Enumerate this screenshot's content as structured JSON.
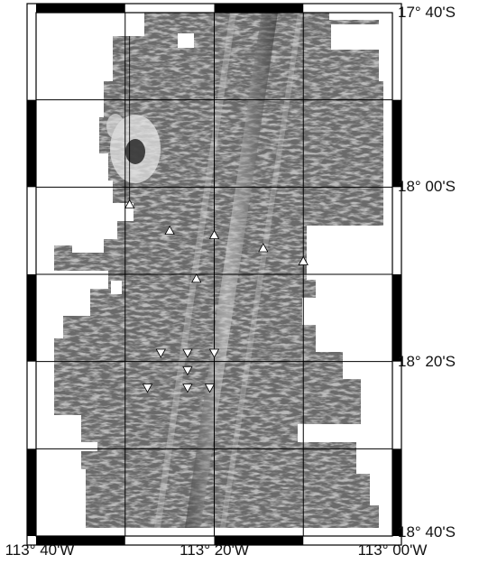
{
  "map": {
    "lat_labels": [
      {
        "text": "17° 40'S",
        "lat": -17.6667
      },
      {
        "text": "18° 00'S",
        "lat": -18.0
      },
      {
        "text": "18° 20'S",
        "lat": -18.3333
      },
      {
        "text": "18° 40'S",
        "lat": -18.6667
      }
    ],
    "lon_labels": [
      {
        "text": "113° 40'W",
        "lon": -113.6667
      },
      {
        "text": "113° 20'W",
        "lon": -113.3333
      },
      {
        "text": "113° 00'W",
        "lon": -113.0
      }
    ],
    "extent": {
      "lon_min": -113.6667,
      "lon_max": -113.0,
      "lat_min": -18.6667,
      "lat_max": -17.6667
    },
    "gridlines": true,
    "frame_style": "alternating black-white border bars",
    "colors": {
      "relief_dark": "#2a2a2a",
      "relief_mid": "#6a6a6a",
      "relief_light": "#bdbdbd",
      "frame": "#000000",
      "background": "#ffffff"
    },
    "markers_up": [
      {
        "lon": -113.4917,
        "lat": -18.0333
      },
      {
        "lon": -113.4167,
        "lat": -18.0833
      },
      {
        "lon": -113.3333,
        "lat": -18.0917
      },
      {
        "lon": -113.2417,
        "lat": -18.1167
      },
      {
        "lon": -113.1667,
        "lat": -18.1417
      },
      {
        "lon": -113.3667,
        "lat": -18.175
      }
    ],
    "markers_down": [
      {
        "lon": -113.4333,
        "lat": -18.3167
      },
      {
        "lon": -113.3833,
        "lat": -18.3167
      },
      {
        "lon": -113.3333,
        "lat": -18.3167
      },
      {
        "lon": -113.3833,
        "lat": -18.35
      },
      {
        "lon": -113.4583,
        "lat": -18.3833
      },
      {
        "lon": -113.3833,
        "lat": -18.3833
      },
      {
        "lon": -113.3417,
        "lat": -18.3833
      }
    ]
  }
}
